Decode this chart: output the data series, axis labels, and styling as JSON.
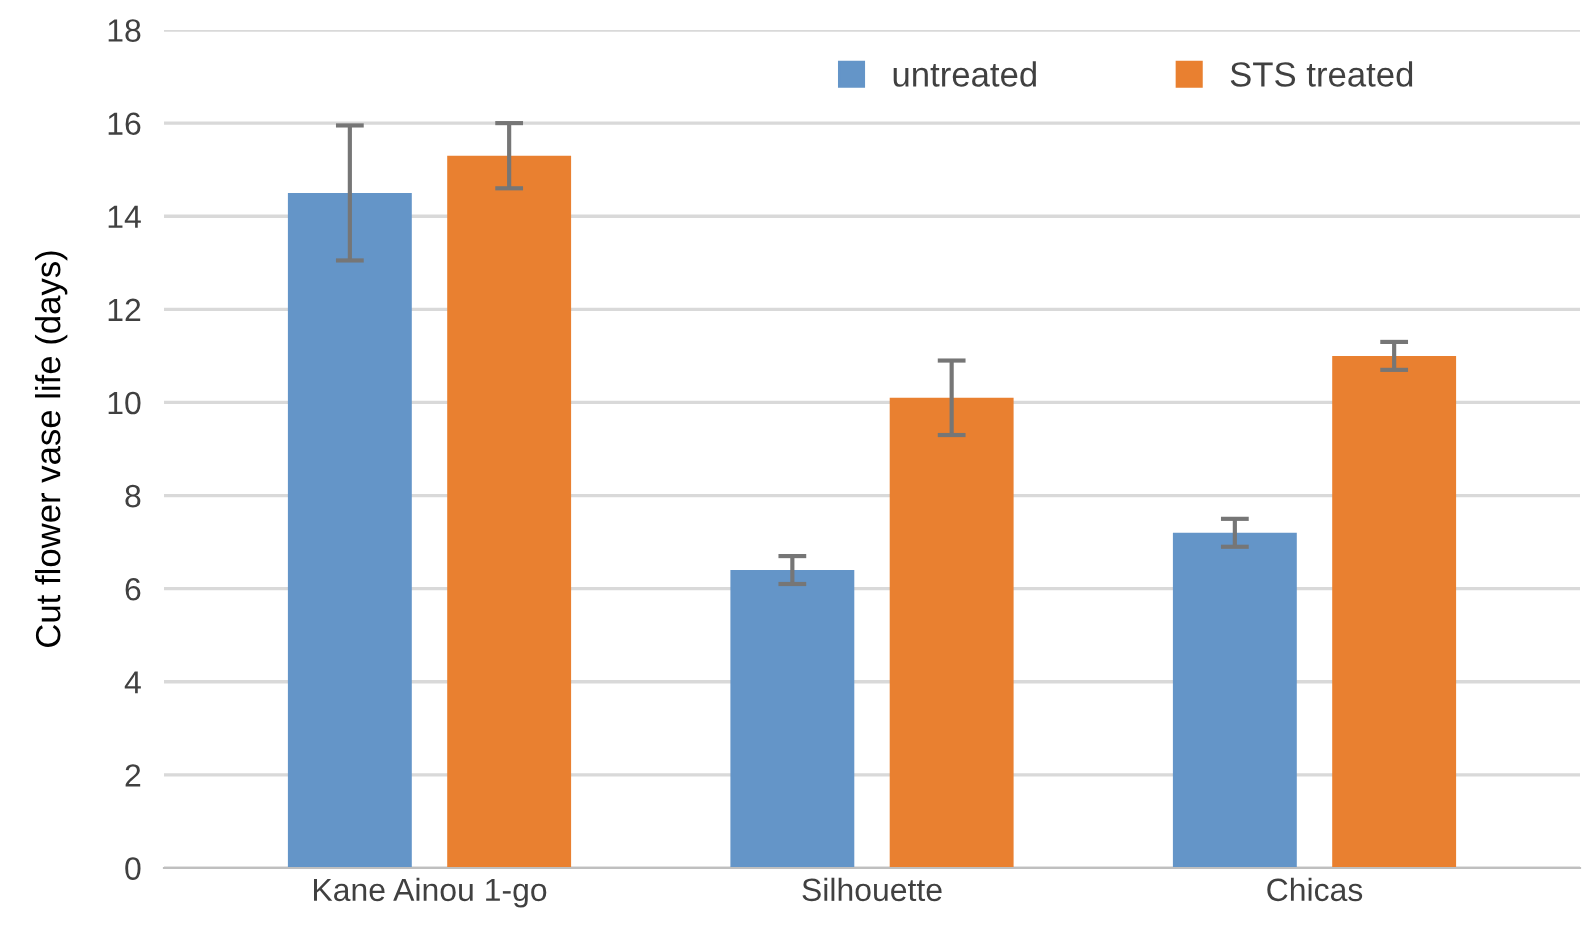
{
  "chart_data": {
    "type": "bar",
    "ylabel": "Cut flower vase life (days)",
    "categories": [
      "Kane Ainou 1-go",
      "Silhouette",
      "Chicas"
    ],
    "series": [
      {
        "name": "untreated",
        "color": "#6495c8",
        "values": [
          14.5,
          6.4,
          7.2
        ],
        "errors": [
          1.45,
          0.3,
          0.3
        ]
      },
      {
        "name": "STS treated",
        "color": "#e98030",
        "values": [
          15.3,
          10.1,
          11.0
        ],
        "errors": [
          0.7,
          0.8,
          0.3
        ]
      }
    ],
    "ylim": [
      0,
      18
    ],
    "yticks": [
      0,
      2,
      4,
      6,
      8,
      10,
      12,
      14,
      16,
      18
    ],
    "grid": "y",
    "legend": "top right"
  }
}
